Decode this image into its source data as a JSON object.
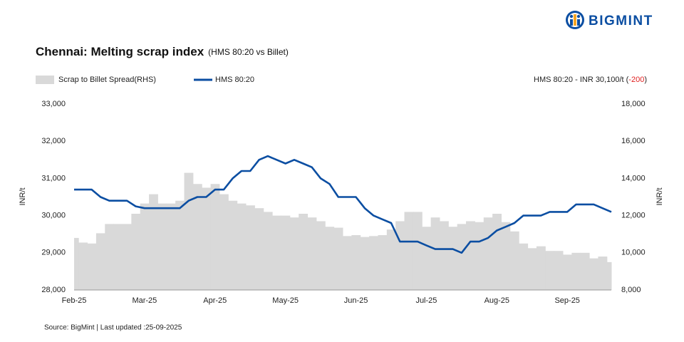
{
  "chart_data": {
    "type": "line",
    "logo": "BIGMINT",
    "title": "Chennai: Melting scrap index",
    "subtitle": "(HMS 80:20 vs Billet)",
    "annotation": [
      "HMS 80:20 - INR 30,100/t (",
      "-200",
      ")"
    ],
    "source": "Source: BigMint | Last updated :25-09-2025",
    "ylabel": "INR/t",
    "y2label": "INR/t",
    "categories": [
      "Feb-25",
      null,
      null,
      null,
      null,
      null,
      null,
      null,
      "Mar-25",
      null,
      null,
      null,
      null,
      null,
      null,
      null,
      "Apr-25",
      null,
      null,
      null,
      null,
      null,
      null,
      null,
      "May-25",
      null,
      null,
      null,
      null,
      null,
      null,
      null,
      "Jun-25",
      null,
      null,
      null,
      null,
      null,
      null,
      null,
      "Jul-25",
      null,
      null,
      null,
      null,
      null,
      null,
      null,
      "Aug-25",
      null,
      null,
      null,
      null,
      null,
      null,
      null,
      "Sep-25",
      null,
      null,
      null,
      null,
      null
    ],
    "series": [
      {
        "name": "Scrap to Billet Spread(RHS)",
        "color": "#d9d9d9",
        "axis": "y2",
        "kind": "area",
        "values": [
          10800,
          10550,
          10500,
          11050,
          11550,
          11550,
          11550,
          12100,
          12650,
          13150,
          12650,
          12650,
          12800,
          14300,
          13700,
          13500,
          13700,
          13150,
          12800,
          12650,
          12550,
          12400,
          12200,
          12000,
          12000,
          11900,
          12100,
          11900,
          11700,
          11400,
          11350,
          10900,
          10950,
          10850,
          10900,
          10950,
          11250,
          11700,
          12200,
          12200,
          11400,
          11900,
          11700,
          11400,
          11550,
          11700,
          11650,
          11900,
          12100,
          11650,
          11150,
          10500,
          10250,
          10350,
          10100,
          10100,
          9900,
          10000,
          10000,
          9700,
          9800,
          9500
        ]
      },
      {
        "name": "HMS 80:20",
        "color": "#0b4ea2",
        "kind": "line",
        "values": [
          30700,
          30700,
          30700,
          30500,
          30400,
          30400,
          30400,
          30250,
          30200,
          30200,
          30200,
          30200,
          30200,
          30400,
          30500,
          30500,
          30700,
          30700,
          31000,
          31200,
          31200,
          31500,
          31600,
          31500,
          31400,
          31500,
          31400,
          31300,
          31000,
          30850,
          30500,
          30500,
          30500,
          30200,
          30000,
          29900,
          29800,
          29300,
          29300,
          29300,
          29200,
          29100,
          29100,
          29100,
          29000,
          29300,
          29300,
          29400,
          29600,
          29700,
          29800,
          30000,
          30000,
          30000,
          30100,
          30100,
          30100,
          30300,
          30300,
          30300,
          30200,
          30100
        ]
      }
    ],
    "ylim": [
      28000,
      33000
    ],
    "yticks": [
      {
        "value": 28000,
        "label": "28,000"
      },
      {
        "value": 29000,
        "label": "29,000"
      },
      {
        "value": 30000,
        "label": "30,000"
      },
      {
        "value": 31000,
        "label": "31,000"
      },
      {
        "value": 32000,
        "label": "32,000"
      },
      {
        "value": 33000,
        "label": "33,000"
      }
    ],
    "y2lim": [
      8000,
      18000
    ],
    "y2ticks": [
      {
        "value": 8000,
        "label": "8,000"
      },
      {
        "value": 10000,
        "label": "10,000"
      },
      {
        "value": 12000,
        "label": "12,000"
      },
      {
        "value": 14000,
        "label": "14,000"
      },
      {
        "value": 16000,
        "label": "16,000"
      },
      {
        "value": 18000,
        "label": "18,000"
      }
    ],
    "annotation_change_color": "#e02020",
    "grid": false
  }
}
